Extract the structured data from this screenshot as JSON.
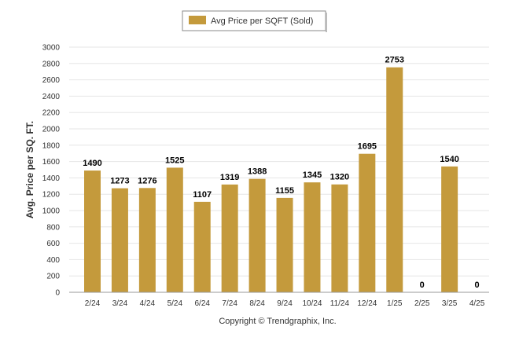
{
  "chart_data": {
    "type": "bar",
    "categories": [
      "2/24",
      "3/24",
      "4/24",
      "5/24",
      "6/24",
      "7/24",
      "8/24",
      "9/24",
      "10/24",
      "11/24",
      "12/24",
      "1/25",
      "2/25",
      "3/25",
      "4/25"
    ],
    "series": [
      {
        "name": "Avg Price per SQFT (Sold)",
        "values": [
          1490,
          1273,
          1276,
          1525,
          1107,
          1319,
          1388,
          1155,
          1345,
          1320,
          1695,
          2753,
          0,
          1540,
          0
        ],
        "color": "#c49a3c"
      }
    ],
    "ylabel": "Avg. Price per SQ. FT.",
    "xlabel": "",
    "ylim": [
      0,
      3000
    ],
    "yticks": [
      0,
      200,
      400,
      600,
      800,
      1000,
      1200,
      1400,
      1600,
      1800,
      2000,
      2200,
      2400,
      2600,
      2800,
      3000
    ],
    "grid": true,
    "legend_position": "top-center"
  },
  "footer": {
    "copyright": "Copyright © Trendgraphix, Inc."
  }
}
